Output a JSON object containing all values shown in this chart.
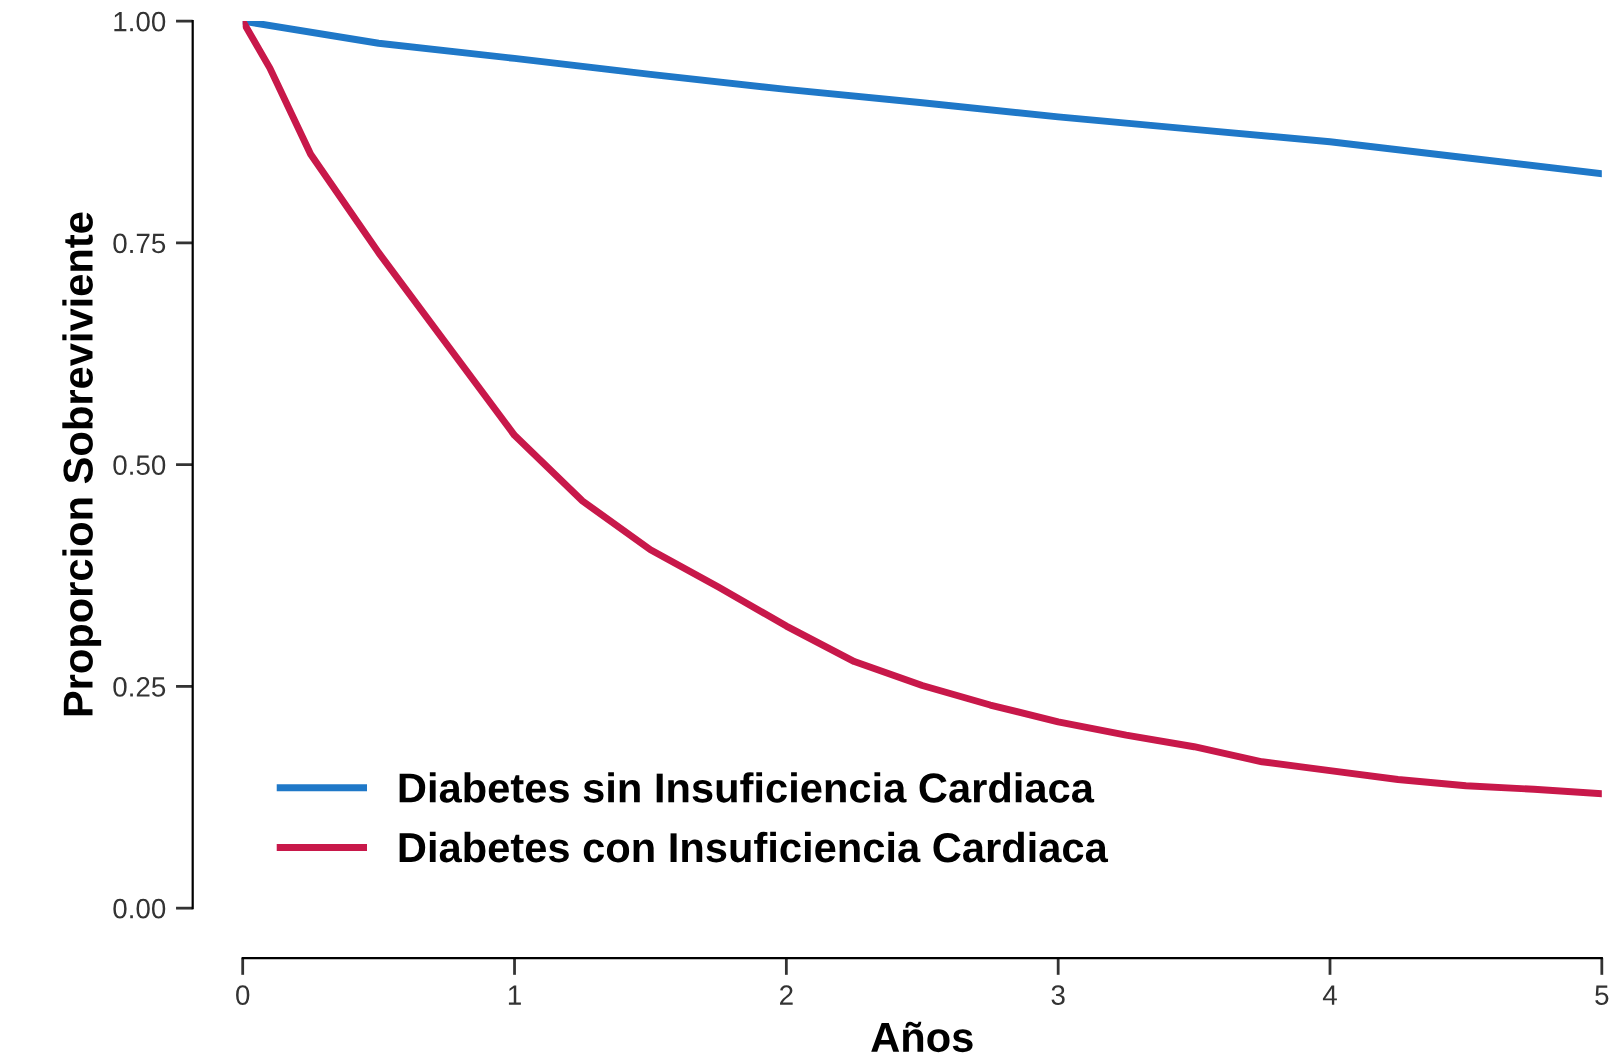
{
  "chart_data": {
    "type": "line",
    "xlabel": "Años",
    "ylabel": "Proporcion Sobreviviente",
    "xlim": [
      0,
      5
    ],
    "ylim": [
      0,
      1
    ],
    "xticks": [
      0,
      1,
      2,
      3,
      4,
      5
    ],
    "yticks": [
      {
        "value": 0,
        "label": "0.00"
      },
      {
        "value": 0.25,
        "label": "0.25"
      },
      {
        "value": 0.5,
        "label": "0.50"
      },
      {
        "value": 0.75,
        "label": "0.75"
      },
      {
        "value": 1,
        "label": "1.00"
      }
    ],
    "grid": false,
    "legend": "bottom left",
    "marker": "none",
    "line_style": "solid",
    "series": [
      {
        "name": "Diabetes sin Insuficiencia Cardiaca",
        "color": "#1f78c8",
        "x": [
          0,
          0.5,
          1,
          1.5,
          2,
          2.5,
          3,
          3.5,
          4,
          4.5,
          5
        ],
        "values": [
          1.0,
          0.975,
          0.958,
          0.94,
          0.923,
          0.908,
          0.892,
          0.878,
          0.864,
          0.846,
          0.828
        ]
      },
      {
        "name": "Diabetes con Insuficiencia Cardiaca",
        "color": "#c8184a",
        "x": [
          0,
          0.1,
          0.25,
          0.5,
          0.75,
          1,
          1.25,
          1.5,
          1.75,
          2,
          2.25,
          2.5,
          2.75,
          3,
          3.25,
          3.5,
          3.75,
          4,
          4.25,
          4.5,
          4.75,
          5
        ],
        "values": [
          1.0,
          0.947,
          0.85,
          0.739,
          0.636,
          0.533,
          0.459,
          0.404,
          0.362,
          0.318,
          0.278,
          0.251,
          0.229,
          0.21,
          0.195,
          0.182,
          0.165,
          0.155,
          0.145,
          0.138,
          0.134,
          0.129
        ]
      }
    ]
  }
}
